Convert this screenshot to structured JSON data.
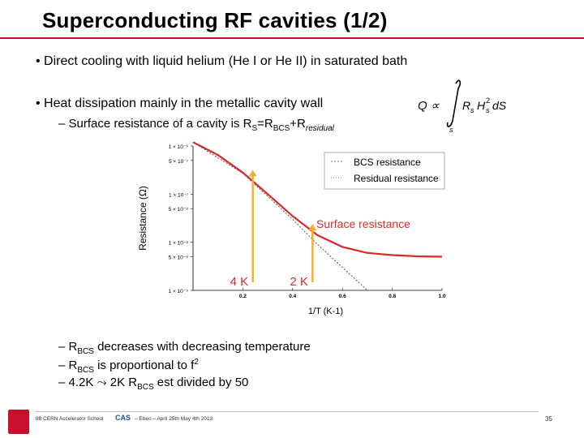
{
  "slide": {
    "title": "Superconducting RF cavities (1/2)",
    "bullets": [
      "• Direct cooling with liquid helium (He I or He II) in saturated bath",
      "• Heat dissipation mainly in the metallic cavity wall"
    ],
    "sub_surface": {
      "prefix": "– Surface resistance of a cavity is R",
      "s1": "S",
      "eq": "=R",
      "s2": "BCS",
      "plus": "+R",
      "s3": "residual"
    },
    "formula": {
      "lhs": "Q ∝",
      "integrand": "R",
      "integrand_sub": "s",
      "h": "H",
      "h_sub": "s",
      "h_sup": "2",
      "ds": "dS",
      "lower": "s"
    },
    "notes": [
      {
        "prefix": "– R",
        "sub": "BCS",
        "text": " decreases with decreasing temperature"
      },
      {
        "prefix": "– R",
        "sub": "BCS",
        "text": " is proportional to f",
        "sup": "2"
      },
      {
        "prefix": "– 4.2K ",
        "arrow": "⤳",
        "text": " 2K R",
        "sub": "BCS",
        "tail": " est divided by 50"
      }
    ],
    "footer": {
      "text": "88 CERN Accelerator School",
      "text2": "– Ebeo – April 25th May 4th 2013",
      "logo2": "CAS",
      "page": "35"
    }
  },
  "chart_data": {
    "type": "line",
    "xlabel": "1/T (K-1)",
    "ylabel": "Resistance (Ω)",
    "xlim": [
      0,
      1.0
    ],
    "ylim_log": [
      -9,
      -6
    ],
    "x_ticks": [
      "0.2",
      "0.4",
      "0.6",
      "0.8",
      "1.0"
    ],
    "y_ticks": [
      "1 × 10⁻⁶",
      "5 × 10⁻⁷",
      "1 × 10⁻⁷",
      "5 × 10⁻⁸",
      "1 × 10⁻⁸",
      "5 × 10⁻⁹",
      "1 × 10⁻⁹"
    ],
    "legend": [
      "BCS resistance",
      "Residual resistance"
    ],
    "annotations": [
      "Surface resistance",
      "4 K",
      "2 K"
    ],
    "series": [
      {
        "name": "Surface resistance",
        "color": "#d62b2b",
        "x": [
          0.0,
          0.1,
          0.2,
          0.3,
          0.4,
          0.5,
          0.6,
          0.7,
          0.8,
          0.9,
          1.0
        ],
        "y": [
          1.2e-06,
          6.5e-07,
          2.8e-07,
          1e-07,
          3.5e-08,
          1.4e-08,
          8e-09,
          6e-09,
          5.4e-09,
          5.1e-09,
          5e-09
        ]
      },
      {
        "name": "BCS resistance",
        "color": "#555555",
        "x": [
          0.0,
          0.2,
          0.4,
          0.5,
          0.6,
          0.7
        ],
        "y": [
          1.2e-06,
          2.7e-07,
          3e-08,
          9e-09,
          3e-09,
          1e-09
        ]
      }
    ],
    "markers": [
      {
        "label": "4 K",
        "x": 0.24,
        "color": "#f0b030"
      },
      {
        "label": "2 K",
        "x": 0.48,
        "color": "#f0b030"
      }
    ]
  }
}
